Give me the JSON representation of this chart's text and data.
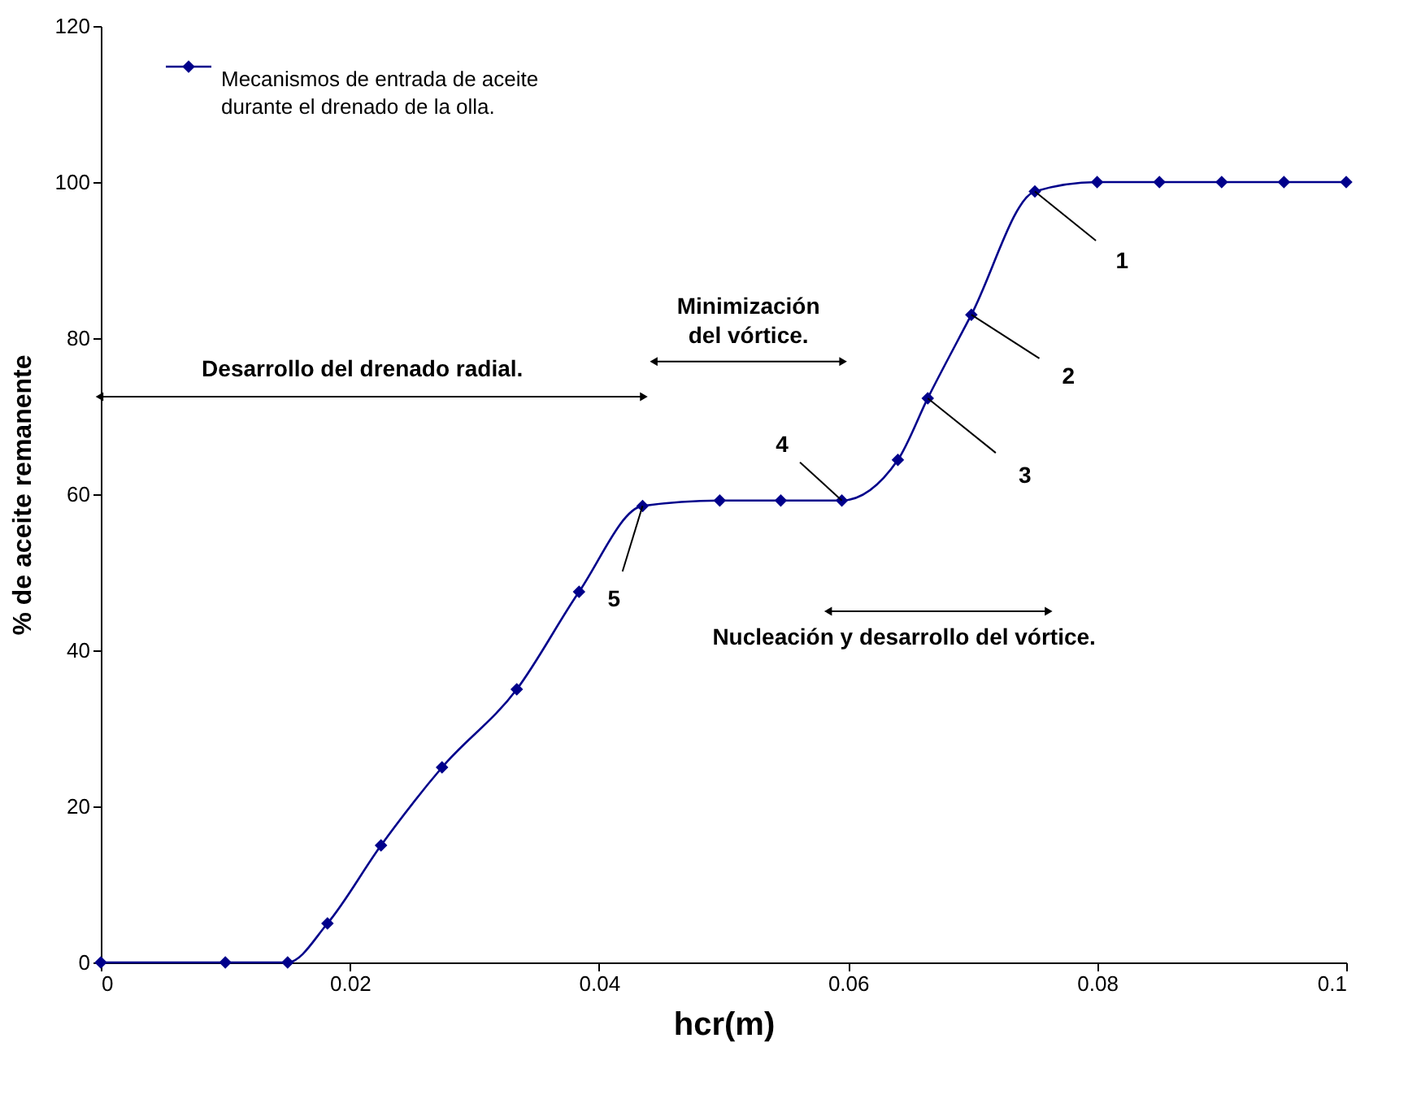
{
  "chart_data": {
    "type": "line",
    "xlabel": "hcr(m)",
    "ylabel": "% de aceite remanente",
    "x": [
      0,
      0.01,
      0.015,
      0.0182,
      0.0225,
      0.0274,
      0.0334,
      0.0384,
      0.0435,
      0.0497,
      0.0546,
      0.0595,
      0.064,
      0.0664,
      0.0699,
      0.075,
      0.08,
      0.085,
      0.09,
      0.095,
      0.1
    ],
    "series": [
      {
        "name": "Mecanismos de entrada de aceite durante el drenado de la olla.",
        "color": "#00008b",
        "values": [
          0,
          0,
          0,
          5,
          15,
          25,
          35,
          47.5,
          58.5,
          59.2,
          59.2,
          59.2,
          64.4,
          72.3,
          83,
          98.8,
          100,
          100,
          100,
          100,
          100
        ]
      }
    ],
    "xlim": [
      0,
      0.1
    ],
    "xticks": [
      0,
      0.02,
      0.04,
      0.06,
      0.08,
      0.1
    ],
    "ylim": [
      0,
      120
    ],
    "yticks": [
      0,
      20,
      40,
      60,
      80,
      100,
      120
    ],
    "grid": false,
    "legend": "top left",
    "marker": "diamond",
    "line_style": "solid",
    "annotations": [
      "Desarrollo del drenado radial.",
      "Minimización del vórtice.",
      "Nucleación y desarrollo del vórtice.",
      {
        "text": "1",
        "x": 0.075,
        "y": 98.8
      },
      {
        "text": "2",
        "x": 0.0699,
        "y": 83
      },
      {
        "text": "3",
        "x": 0.0664,
        "y": 72.3
      },
      {
        "text": "4",
        "x": 0.0595,
        "y": 59.2
      },
      {
        "text": "5",
        "x": 0.0435,
        "y": 58.5
      }
    ]
  }
}
